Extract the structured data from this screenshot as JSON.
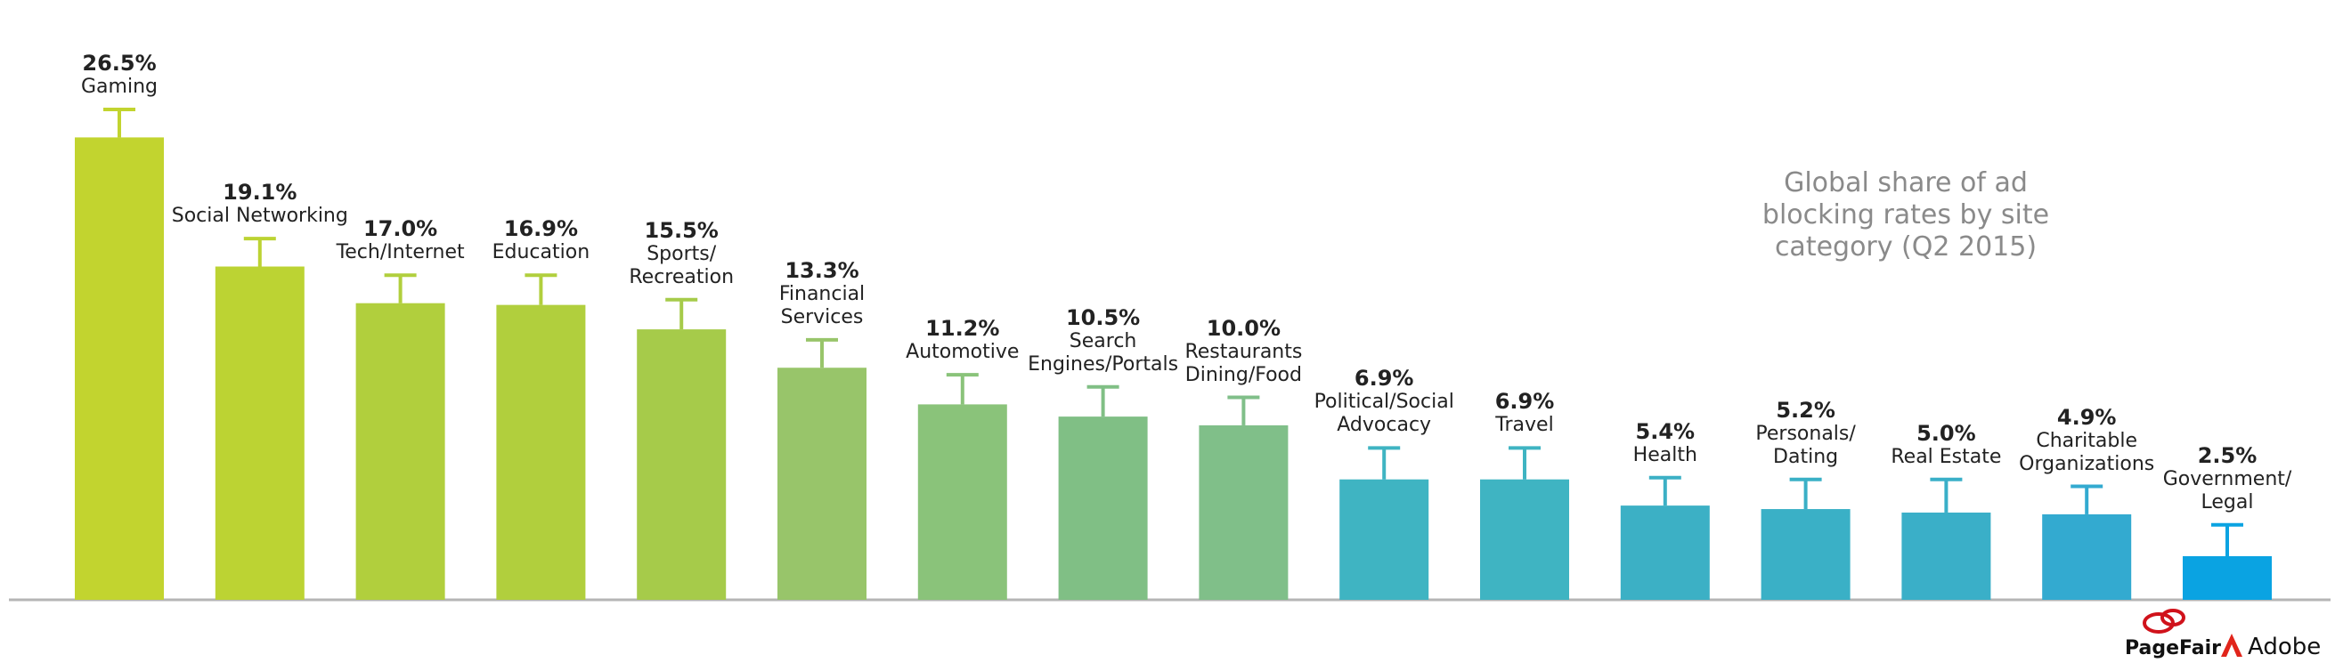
{
  "chart_data": {
    "type": "bar",
    "title": "Global share of ad\nblocking rates by site\ncategory (Q2 2015)",
    "categories": [
      "Gaming",
      "Social Networking",
      "Tech/Internet",
      "Education",
      "Sports/\nRecreation",
      "Financial\nServices",
      "Automotive",
      "Search\nEngines/Portals",
      "Restaurants\nDining/Food",
      "Political/Social\nAdvocacy",
      "Travel",
      "Health",
      "Personals/\nDating",
      "Real Estate",
      "Charitable\nOrganizations",
      "Government/\nLegal"
    ],
    "values": [
      26.5,
      19.1,
      17.0,
      16.9,
      15.5,
      13.3,
      11.2,
      10.5,
      10.0,
      6.9,
      6.9,
      5.4,
      5.2,
      5.0,
      4.9,
      2.5
    ],
    "value_labels": [
      "26.5%",
      "19.1%",
      "17.0%",
      "16.9%",
      "15.5%",
      "13.3%",
      "11.2%",
      "10.5%",
      "10.0%",
      "6.9%",
      "6.9%",
      "5.4%",
      "5.2%",
      "5.0%",
      "4.9%",
      "2.5%"
    ],
    "errors": [
      1.6,
      1.6,
      1.6,
      1.7,
      1.7,
      1.6,
      1.7,
      1.7,
      1.6,
      1.8,
      1.8,
      1.6,
      1.7,
      1.9,
      1.6,
      1.8
    ],
    "colors": [
      "#c2d42f",
      "#bcd333",
      "#b1cf3d",
      "#b1cf3d",
      "#a6cb4a",
      "#98c56a",
      "#8ac37a",
      "#80bf85",
      "#80bf89",
      "#3fb4c2",
      "#3fb4c2",
      "#3cb0c5",
      "#3ab0c6",
      "#3aafc8",
      "#33aad0",
      "#0aa3e2"
    ],
    "ylim": [
      0,
      28
    ],
    "logos": [
      "PageFair",
      "Adobe"
    ]
  }
}
